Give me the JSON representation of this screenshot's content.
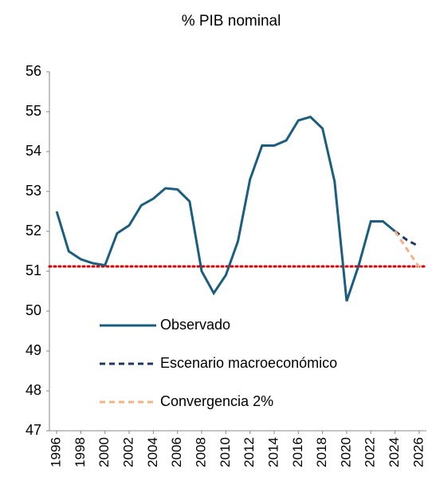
{
  "chart_data": {
    "type": "line",
    "title": "% PIB nominal",
    "x": [
      1996,
      1997,
      1998,
      1999,
      2000,
      2001,
      2002,
      2003,
      2004,
      2005,
      2006,
      2007,
      2008,
      2009,
      2010,
      2011,
      2012,
      2013,
      2014,
      2015,
      2016,
      2017,
      2018,
      2019,
      2020,
      2021,
      2022,
      2023,
      2024,
      2025,
      2026
    ],
    "series": [
      {
        "name": "Observado",
        "color": "#1b5e80",
        "dash": "solid",
        "values": [
          52.5,
          51.5,
          51.3,
          51.2,
          51.15,
          51.95,
          52.15,
          52.65,
          52.82,
          53.08,
          53.05,
          52.75,
          51.0,
          50.45,
          50.9,
          51.75,
          53.3,
          54.15,
          54.15,
          54.28,
          54.78,
          54.87,
          54.58,
          53.25,
          50.25,
          51.15,
          52.25,
          52.25,
          52.0,
          null,
          null
        ]
      },
      {
        "name": "Escenario macroeconómico",
        "color": "#1f3864",
        "dash": "dashed",
        "values": [
          null,
          null,
          null,
          null,
          null,
          null,
          null,
          null,
          null,
          null,
          null,
          null,
          null,
          null,
          null,
          null,
          null,
          null,
          null,
          null,
          null,
          null,
          null,
          null,
          null,
          null,
          null,
          null,
          52.0,
          51.78,
          51.62
        ]
      },
      {
        "name": "Convergencia 2%",
        "color": "#f4b183",
        "dash": "dashed",
        "values": [
          null,
          null,
          null,
          null,
          null,
          null,
          null,
          null,
          null,
          null,
          null,
          null,
          null,
          null,
          null,
          null,
          null,
          null,
          null,
          null,
          null,
          null,
          null,
          null,
          null,
          null,
          null,
          null,
          52.0,
          51.55,
          51.1
        ]
      }
    ],
    "hline": {
      "value": 51.12,
      "color": "#e00000"
    },
    "xlim": [
      1995.4,
      2026.6
    ],
    "xticks": [
      1996,
      1998,
      2000,
      2002,
      2004,
      2006,
      2008,
      2010,
      2012,
      2014,
      2016,
      2018,
      2020,
      2022,
      2024,
      2026
    ],
    "ylim": [
      47,
      56
    ],
    "yticks": [
      47,
      48,
      49,
      50,
      51,
      52,
      53,
      54,
      55,
      56
    ]
  }
}
